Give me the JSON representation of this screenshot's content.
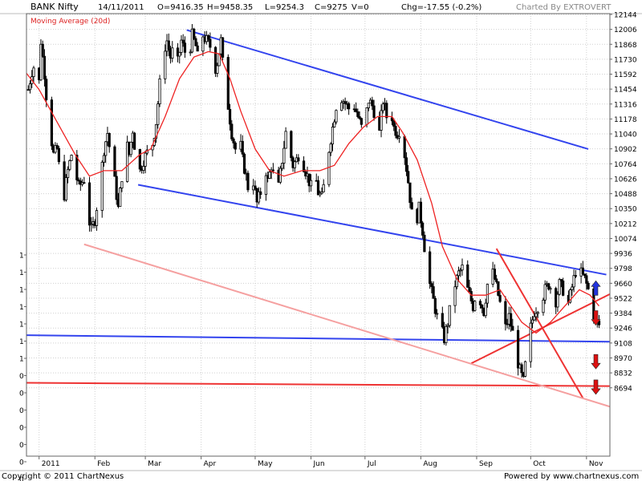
{
  "chart_data": {
    "type": "candlestick",
    "header": {
      "symbol": "BANK Nifty",
      "date": "14/11/2011",
      "open": "O=9416.35",
      "high": "H=9458.35",
      "low": "L=9254.3",
      "close": "C=9275",
      "volume": "V=0",
      "change": "Chg=-17.55 (-0.2%)",
      "charted_by": "Charted By EXTROVERT"
    },
    "indicator_label": "Moving Average (20d)",
    "footer": {
      "copyright": "Copyright © 2011 ChartNexus",
      "powered_by": "Powered by www.chartnexus.com"
    },
    "y_ticks": [
      12144,
      12006,
      11868,
      11730,
      11592,
      11454,
      11316,
      11178,
      11040,
      10902,
      10764,
      10626,
      10488,
      10350,
      10212,
      10074,
      9936,
      9798,
      9660,
      9522,
      9384,
      9246,
      9108,
      8970,
      8832,
      8694
    ],
    "ylim": [
      8070,
      12144
    ],
    "left_axis_labels": [
      "1",
      "1",
      "1",
      "1",
      "1",
      "1",
      "1",
      "0",
      "0",
      "0",
      "0",
      "0",
      "0",
      "0"
    ],
    "x_labels": [
      "2011",
      "Feb",
      "Mar",
      "Apr",
      "May",
      "Jun",
      "Jul",
      "Aug",
      "Sep",
      "Oct",
      "Nov"
    ],
    "x_label_days": [
      0,
      31,
      59,
      90,
      120,
      151,
      181,
      212,
      243,
      273,
      304
    ],
    "x_days_range": [
      -7,
      317
    ],
    "ohlc_anchor_closes": [
      [
        -6,
        11450
      ],
      [
        -4,
        11620
      ],
      [
        -2,
        11700
      ],
      [
        0,
        11520
      ],
      [
        1,
        11900
      ],
      [
        3,
        11600
      ],
      [
        5,
        11200
      ],
      [
        8,
        10850
      ],
      [
        10,
        10900
      ],
      [
        12,
        10600
      ],
      [
        14,
        10480
      ],
      [
        16,
        10700
      ],
      [
        18,
        10850
      ],
      [
        20,
        10700
      ],
      [
        22,
        10550
      ],
      [
        25,
        10620
      ],
      [
        27,
        10300
      ],
      [
        29,
        10150
      ],
      [
        31,
        10250
      ],
      [
        34,
        10600
      ],
      [
        36,
        10900
      ],
      [
        38,
        11050
      ],
      [
        40,
        10800
      ],
      [
        42,
        10600
      ],
      [
        44,
        10350
      ],
      [
        46,
        10650
      ],
      [
        48,
        11000
      ],
      [
        50,
        10850
      ],
      [
        52,
        11080
      ],
      [
        54,
        10800
      ],
      [
        56,
        10700
      ],
      [
        58,
        10800
      ],
      [
        61,
        10900
      ],
      [
        63,
        10950
      ],
      [
        65,
        11150
      ],
      [
        67,
        11500
      ],
      [
        69,
        11800
      ],
      [
        71,
        11900
      ],
      [
        73,
        11750
      ],
      [
        75,
        11850
      ],
      [
        77,
        11700
      ],
      [
        79,
        11900
      ],
      [
        81,
        11800
      ],
      [
        83,
        11750
      ],
      [
        85,
        11950
      ],
      [
        87,
        11850
      ],
      [
        89,
        11650
      ],
      [
        91,
        11950
      ],
      [
        93,
        11900
      ],
      [
        95,
        11850
      ],
      [
        97,
        11600
      ],
      [
        99,
        11700
      ],
      [
        101,
        11900
      ],
      [
        103,
        11500
      ],
      [
        105,
        11300
      ],
      [
        107,
        11050
      ],
      [
        109,
        10900
      ],
      [
        111,
        11050
      ],
      [
        113,
        10800
      ],
      [
        115,
        10650
      ],
      [
        117,
        10450
      ],
      [
        119,
        10600
      ],
      [
        121,
        10400
      ],
      [
        123,
        10500
      ],
      [
        125,
        10800
      ],
      [
        127,
        10600
      ],
      [
        129,
        10750
      ],
      [
        131,
        10600
      ],
      [
        133,
        10550
      ],
      [
        135,
        10800
      ],
      [
        137,
        11050
      ],
      [
        139,
        10900
      ],
      [
        141,
        10750
      ],
      [
        143,
        10800
      ],
      [
        145,
        10900
      ],
      [
        147,
        10750
      ],
      [
        149,
        10650
      ],
      [
        151,
        10550
      ],
      [
        153,
        10700
      ],
      [
        155,
        10500
      ],
      [
        157,
        10450
      ],
      [
        159,
        10650
      ],
      [
        161,
        10900
      ],
      [
        163,
        11100
      ],
      [
        165,
        11300
      ],
      [
        167,
        11400
      ],
      [
        169,
        11350
      ],
      [
        171,
        11300
      ],
      [
        173,
        11250
      ],
      [
        175,
        11300
      ],
      [
        177,
        11200
      ],
      [
        179,
        11100
      ],
      [
        181,
        11150
      ],
      [
        183,
        11350
      ],
      [
        185,
        11300
      ],
      [
        187,
        11200
      ],
      [
        189,
        11050
      ],
      [
        191,
        11350
      ],
      [
        193,
        11200
      ],
      [
        195,
        11300
      ],
      [
        197,
        11100
      ],
      [
        199,
        11050
      ],
      [
        201,
        11100
      ],
      [
        203,
        10850
      ],
      [
        205,
        10600
      ],
      [
        207,
        10300
      ],
      [
        209,
        10200
      ],
      [
        211,
        10350
      ],
      [
        213,
        10150
      ],
      [
        215,
        9850
      ],
      [
        217,
        9650
      ],
      [
        219,
        9500
      ],
      [
        221,
        9350
      ],
      [
        223,
        9250
      ],
      [
        225,
        9150
      ],
      [
        227,
        9300
      ],
      [
        229,
        9500
      ],
      [
        231,
        9650
      ],
      [
        233,
        9750
      ],
      [
        235,
        9800
      ],
      [
        237,
        9650
      ],
      [
        239,
        9550
      ],
      [
        241,
        9450
      ],
      [
        243,
        9600
      ],
      [
        245,
        9500
      ],
      [
        247,
        9400
      ],
      [
        249,
        9650
      ],
      [
        251,
        9800
      ],
      [
        253,
        9700
      ],
      [
        255,
        9550
      ],
      [
        257,
        9400
      ],
      [
        259,
        9250
      ],
      [
        261,
        9350
      ],
      [
        263,
        9200
      ],
      [
        265,
        9000
      ],
      [
        267,
        8850
      ],
      [
        269,
        8750
      ],
      [
        271,
        9050
      ],
      [
        273,
        9250
      ],
      [
        275,
        9400
      ],
      [
        277,
        9450
      ],
      [
        279,
        9500
      ],
      [
        281,
        9600
      ],
      [
        283,
        9650
      ],
      [
        285,
        9600
      ],
      [
        287,
        9500
      ],
      [
        289,
        9650
      ],
      [
        291,
        9600
      ],
      [
        293,
        9400
      ],
      [
        295,
        9550
      ],
      [
        297,
        9700
      ],
      [
        299,
        9850
      ],
      [
        301,
        9750
      ],
      [
        303,
        9700
      ],
      [
        305,
        9600
      ],
      [
        307,
        9450
      ],
      [
        309,
        9300
      ],
      [
        311,
        9275
      ]
    ],
    "moving_average_20d_points": [
      [
        -7,
        11600
      ],
      [
        0,
        11450
      ],
      [
        10,
        11150
      ],
      [
        20,
        10850
      ],
      [
        28,
        10650
      ],
      [
        36,
        10700
      ],
      [
        46,
        10700
      ],
      [
        56,
        10850
      ],
      [
        62,
        10900
      ],
      [
        70,
        11200
      ],
      [
        78,
        11550
      ],
      [
        86,
        11750
      ],
      [
        94,
        11800
      ],
      [
        100,
        11780
      ],
      [
        106,
        11550
      ],
      [
        112,
        11250
      ],
      [
        120,
        10900
      ],
      [
        128,
        10700
      ],
      [
        136,
        10650
      ],
      [
        146,
        10700
      ],
      [
        156,
        10700
      ],
      [
        164,
        10750
      ],
      [
        172,
        10950
      ],
      [
        180,
        11100
      ],
      [
        188,
        11200
      ],
      [
        196,
        11200
      ],
      [
        202,
        11050
      ],
      [
        210,
        10800
      ],
      [
        218,
        10400
      ],
      [
        224,
        10000
      ],
      [
        232,
        9700
      ],
      [
        240,
        9550
      ],
      [
        248,
        9550
      ],
      [
        256,
        9600
      ],
      [
        262,
        9450
      ],
      [
        268,
        9300
      ],
      [
        276,
        9200
      ],
      [
        284,
        9300
      ],
      [
        292,
        9450
      ],
      [
        300,
        9600
      ],
      [
        306,
        9550
      ],
      [
        311,
        9450
      ]
    ],
    "trendlines": [
      {
        "color": "#3344ee",
        "points": [
          [
            82,
            12000
          ],
          [
            305,
            10900
          ]
        ]
      },
      {
        "color": "#3344ee",
        "points": [
          [
            55,
            10570
          ],
          [
            315,
            9740
          ]
        ]
      },
      {
        "color": "#3344ee",
        "points": [
          [
            -7,
            9180
          ],
          [
            317,
            9120
          ]
        ]
      },
      {
        "color": "#ee3333",
        "points": [
          [
            -7,
            8740
          ],
          [
            317,
            8710
          ]
        ]
      },
      {
        "color": "#ee3333",
        "points": [
          [
            240,
            8920
          ],
          [
            317,
            9560
          ]
        ]
      },
      {
        "color": "#ee3333",
        "points": [
          [
            254,
            9980
          ],
          [
            302,
            8600
          ]
        ]
      },
      {
        "color": "#f5a0a0",
        "points": [
          [
            25,
            10020
          ],
          [
            317,
            8520
          ]
        ]
      }
    ],
    "arrows": [
      {
        "direction": "up",
        "day": 311,
        "value": 9590,
        "color": "#2233dd"
      },
      {
        "direction": "down",
        "day": 311,
        "value": 9340,
        "color": "#dd1111"
      },
      {
        "direction": "down",
        "day": 311,
        "value": 8935,
        "color": "#dd1111"
      },
      {
        "direction": "down",
        "day": 311,
        "value": 8700,
        "color": "#dd1111"
      }
    ],
    "colors": {
      "candle": "#000000",
      "moving_average": "#ee2222",
      "grid": "#d0d0d0",
      "header_bg": "#ffffff"
    }
  }
}
